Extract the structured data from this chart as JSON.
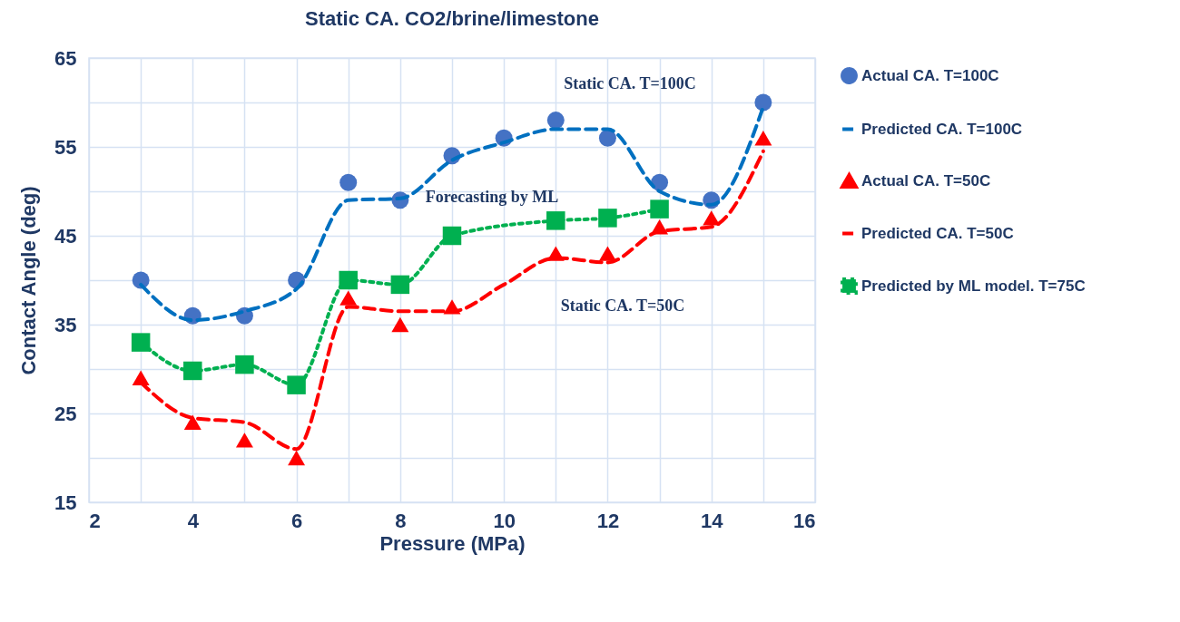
{
  "chart_data": {
    "type": "scatter",
    "title": "Static CA. CO2/brine/limestone",
    "xlabel": "Pressure (MPa)",
    "ylabel": "Contact Angle (deg)",
    "xlim": [
      2,
      16
    ],
    "xticks": [
      2,
      {
        "value": 3,
        "label": null
      },
      4,
      {
        "value": 5,
        "label": null
      },
      6,
      {
        "value": 7,
        "label": null
      },
      8,
      {
        "value": 9,
        "label": null
      },
      10,
      {
        "value": 11,
        "label": null
      },
      12,
      {
        "value": 13,
        "label": null
      },
      14,
      {
        "value": 15,
        "label": null
      },
      16
    ],
    "ylim": [
      15,
      65
    ],
    "yticks": [
      15,
      {
        "value": 20,
        "label": null
      },
      25,
      {
        "value": 30,
        "label": null
      },
      35,
      {
        "value": 40,
        "label": null
      },
      45,
      {
        "value": 50,
        "label": null
      },
      55,
      {
        "value": 60,
        "label": null
      },
      65
    ],
    "grid": true,
    "legend": "right",
    "series": [
      {
        "name": "Actual CA. T=100C",
        "marker": "circle",
        "color": "#4472c4",
        "x": [
          3,
          4,
          5,
          6,
          7,
          8,
          9,
          10,
          11,
          12,
          13,
          14,
          15
        ],
        "values": [
          40,
          36,
          36,
          40,
          51,
          49,
          54,
          56,
          58,
          56,
          51,
          49,
          60
        ]
      },
      {
        "name": "Predicted CA. T=100C",
        "type": "line",
        "marker": "none",
        "line_style": "dashed",
        "color": "#0070c0",
        "x": [
          3,
          4,
          5,
          6,
          7,
          8,
          9,
          10,
          11,
          12,
          13,
          14,
          15
        ],
        "values": [
          39.5,
          35.5,
          36.5,
          39,
          49,
          49.2,
          53.5,
          55.5,
          57,
          57,
          50,
          48.5,
          59.5
        ]
      },
      {
        "name": "Actual CA. T=50C",
        "marker": "triangle",
        "color": "#ff0000",
        "x": [
          3,
          4,
          5,
          6,
          7,
          8,
          9,
          11,
          12,
          13,
          14,
          15
        ],
        "values": [
          29,
          24,
          22,
          20,
          38,
          35,
          37,
          43,
          43,
          46,
          47,
          56
        ]
      },
      {
        "name": "Predicted CA. T=50C",
        "type": "line",
        "marker": "none",
        "line_style": "dashed",
        "color": "#ff0000",
        "x": [
          3,
          4,
          5,
          6,
          7,
          8,
          9,
          10,
          11,
          12,
          13,
          14,
          15
        ],
        "values": [
          28.5,
          24.5,
          24,
          21,
          37,
          36.5,
          36.5,
          39.5,
          42.5,
          42,
          45.5,
          46,
          54.5
        ]
      },
      {
        "name": "Predicted by ML model. T=75C",
        "type": "line",
        "marker": "square",
        "line_style": "dotted",
        "color": "#00b050",
        "x": [
          3,
          4,
          5,
          6,
          7,
          8,
          9,
          11,
          12,
          13
        ],
        "values": [
          33,
          29.8,
          30.5,
          28.2,
          40,
          39.5,
          45,
          46.7,
          47,
          48
        ]
      }
    ],
    "annotations": [
      "Static CA. T=100C",
      "Forecasting by ML",
      "Static CA. T=50C"
    ]
  }
}
